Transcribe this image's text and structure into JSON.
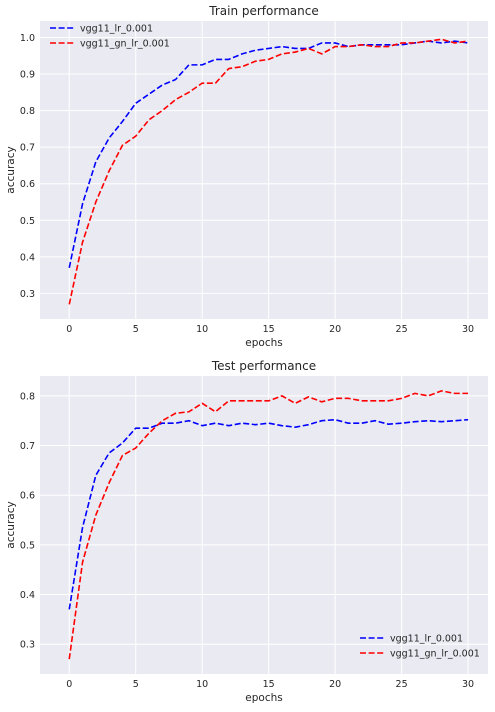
{
  "chart_data": [
    {
      "type": "line",
      "title": "Train performance",
      "xlabel": "epochs",
      "ylabel": "accuracy",
      "xlim": [
        -2.2,
        31.5
      ],
      "ylim": [
        0.23,
        1.045
      ],
      "xticks": [
        0,
        5,
        10,
        15,
        20,
        25,
        30
      ],
      "yticks": [
        0.3,
        0.4,
        0.5,
        0.6,
        0.7,
        0.8,
        0.9,
        1.0
      ],
      "grid": true,
      "legend_position": "top-left",
      "x": [
        0,
        1,
        2,
        3,
        4,
        5,
        6,
        7,
        8,
        9,
        10,
        11,
        12,
        13,
        14,
        15,
        16,
        17,
        18,
        19,
        20,
        21,
        22,
        23,
        24,
        25,
        26,
        27,
        28,
        29,
        30
      ],
      "series": [
        {
          "name": "vgg11_lr_0.001",
          "color": "#0000ff",
          "values": [
            0.37,
            0.545,
            0.66,
            0.725,
            0.77,
            0.82,
            0.845,
            0.87,
            0.885,
            0.925,
            0.925,
            0.94,
            0.94,
            0.955,
            0.965,
            0.97,
            0.975,
            0.97,
            0.97,
            0.985,
            0.985,
            0.975,
            0.98,
            0.98,
            0.98,
            0.98,
            0.985,
            0.99,
            0.985,
            0.99,
            0.985
          ]
        },
        {
          "name": "vgg11_gn_lr_0.001",
          "color": "#ff0000",
          "values": [
            0.27,
            0.44,
            0.55,
            0.635,
            0.705,
            0.73,
            0.775,
            0.8,
            0.83,
            0.85,
            0.875,
            0.875,
            0.915,
            0.92,
            0.935,
            0.94,
            0.955,
            0.96,
            0.97,
            0.955,
            0.975,
            0.975,
            0.98,
            0.975,
            0.975,
            0.985,
            0.985,
            0.99,
            0.995,
            0.985,
            0.99
          ]
        }
      ]
    },
    {
      "type": "line",
      "title": "Test performance",
      "xlabel": "epochs",
      "ylabel": "accuracy",
      "xlim": [
        -2.2,
        31.5
      ],
      "ylim": [
        0.24,
        0.84
      ],
      "xticks": [
        0,
        5,
        10,
        15,
        20,
        25,
        30
      ],
      "yticks": [
        0.3,
        0.4,
        0.5,
        0.6,
        0.7,
        0.8
      ],
      "grid": true,
      "legend_position": "bottom-right",
      "x": [
        0,
        1,
        2,
        3,
        4,
        5,
        6,
        7,
        8,
        9,
        10,
        11,
        12,
        13,
        14,
        15,
        16,
        17,
        18,
        19,
        20,
        21,
        22,
        23,
        24,
        25,
        26,
        27,
        28,
        29,
        30
      ],
      "series": [
        {
          "name": "vgg11_lr_0.001",
          "color": "#0000ff",
          "values": [
            0.37,
            0.535,
            0.64,
            0.685,
            0.705,
            0.735,
            0.735,
            0.745,
            0.745,
            0.75,
            0.74,
            0.745,
            0.74,
            0.745,
            0.742,
            0.745,
            0.74,
            0.737,
            0.742,
            0.75,
            0.752,
            0.745,
            0.745,
            0.75,
            0.743,
            0.745,
            0.748,
            0.75,
            0.748,
            0.75,
            0.752
          ]
        },
        {
          "name": "vgg11_gn_lr_0.001",
          "color": "#ff0000",
          "values": [
            0.27,
            0.465,
            0.56,
            0.625,
            0.68,
            0.695,
            0.725,
            0.75,
            0.765,
            0.768,
            0.785,
            0.768,
            0.79,
            0.79,
            0.79,
            0.79,
            0.8,
            0.785,
            0.798,
            0.788,
            0.795,
            0.795,
            0.79,
            0.79,
            0.79,
            0.795,
            0.805,
            0.8,
            0.81,
            0.805,
            0.805
          ]
        }
      ]
    }
  ]
}
